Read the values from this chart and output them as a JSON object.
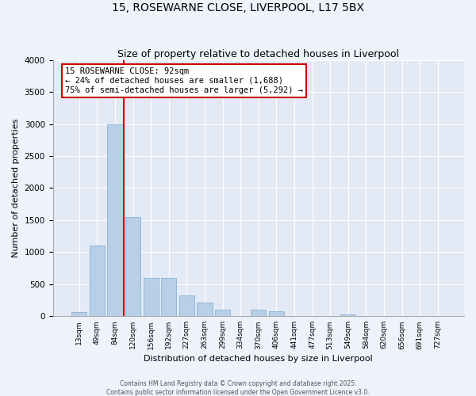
{
  "title1": "15, ROSEWARNE CLOSE, LIVERPOOL, L17 5BX",
  "title2": "Size of property relative to detached houses in Liverpool",
  "xlabel": "Distribution of detached houses by size in Liverpool",
  "ylabel": "Number of detached properties",
  "categories": [
    "13sqm",
    "49sqm",
    "84sqm",
    "120sqm",
    "156sqm",
    "192sqm",
    "227sqm",
    "263sqm",
    "299sqm",
    "334sqm",
    "370sqm",
    "406sqm",
    "441sqm",
    "477sqm",
    "513sqm",
    "549sqm",
    "584sqm",
    "620sqm",
    "656sqm",
    "691sqm",
    "727sqm"
  ],
  "values": [
    60,
    1100,
    3000,
    1550,
    600,
    600,
    330,
    220,
    100,
    0,
    100,
    75,
    0,
    0,
    0,
    30,
    0,
    0,
    0,
    0,
    0
  ],
  "bar_color": "#b8cfe8",
  "bar_edge_color": "#7aaacf",
  "vline_x": 2.5,
  "vline_color": "#cc0000",
  "annotation_title": "15 ROSEWARNE CLOSE: 92sqm",
  "annotation_line2": "← 24% of detached houses are smaller (1,688)",
  "annotation_line3": "75% of semi-detached houses are larger (5,292) →",
  "annotation_box_edge_color": "#cc0000",
  "ylim": [
    0,
    4000
  ],
  "yticks": [
    0,
    500,
    1000,
    1500,
    2000,
    2500,
    3000,
    3500,
    4000
  ],
  "footer1": "Contains HM Land Registry data © Crown copyright and database right 2025.",
  "footer2": "Contains public sector information licensed under the Open Government Licence v3.0.",
  "bg_color": "#eef2fa",
  "plot_bg_color": "#e4eaf5",
  "title1_fontsize": 10,
  "title2_fontsize": 9,
  "xlabel_fontsize": 8,
  "ylabel_fontsize": 8,
  "xtick_fontsize": 6.5,
  "ytick_fontsize": 7.5,
  "footer_fontsize": 5.5,
  "ann_fontsize": 7.5
}
